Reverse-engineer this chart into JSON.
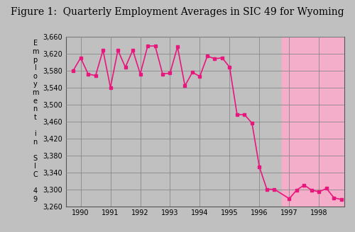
{
  "title": "Figure 1:  Quarterly Employment Averages in SIC 49 for Wyoming",
  "title_fontsize": 10,
  "ylabel_chars": [
    "E",
    "m",
    "p",
    "l",
    "o",
    "y",
    "m",
    "e",
    "n",
    "t",
    "",
    "i",
    "n",
    "",
    "S",
    "I",
    "C",
    "",
    "4",
    "9"
  ],
  "ylim": [
    3260,
    3660
  ],
  "yticks": [
    3260,
    3300,
    3340,
    3380,
    3420,
    3460,
    3500,
    3540,
    3580,
    3620,
    3660
  ],
  "ytick_labels": [
    "3,260",
    "3,300",
    "3,340",
    "3,380",
    "3,420",
    "3,460",
    "3,500",
    "3,540",
    "3,580",
    "3,620",
    "3,660"
  ],
  "xtick_positions": [
    1990,
    1991,
    1992,
    1993,
    1994,
    1995,
    1996,
    1997,
    1998
  ],
  "xtick_labels": [
    "1990",
    "1991",
    "1992",
    "1993",
    "1994",
    "1995",
    "1996",
    "1997",
    "1998"
  ],
  "line_color": "#E8177D",
  "marker": "s",
  "markersize": 3.5,
  "linewidth": 1.2,
  "bg_color": "#C0C0C0",
  "shade_color": "#F4AECA",
  "shade_start": 1996.75,
  "shade_end": 1999.0,
  "xlim": [
    1989.5,
    1998.85
  ],
  "x_values": [
    1989.75,
    1990.0,
    1990.25,
    1990.5,
    1990.75,
    1991.0,
    1991.25,
    1991.5,
    1991.75,
    1992.0,
    1992.25,
    1992.5,
    1992.75,
    1993.0,
    1993.25,
    1993.5,
    1993.75,
    1994.0,
    1994.25,
    1994.5,
    1994.75,
    1995.0,
    1995.25,
    1995.5,
    1995.75,
    1996.0,
    1996.25,
    1996.5,
    1997.0,
    1997.25,
    1997.5,
    1997.75,
    1998.0,
    1998.25,
    1998.5,
    1998.75
  ],
  "y_values": [
    3580,
    3610,
    3572,
    3568,
    3628,
    3540,
    3628,
    3588,
    3628,
    3572,
    3638,
    3638,
    3572,
    3574,
    3636,
    3544,
    3576,
    3566,
    3614,
    3608,
    3610,
    3588,
    3476,
    3476,
    3456,
    3352,
    3300,
    3300,
    3278,
    3298,
    3310,
    3298,
    3294,
    3302,
    3280,
    3276
  ],
  "grid_color": "#888888",
  "spine_color": "#555555"
}
